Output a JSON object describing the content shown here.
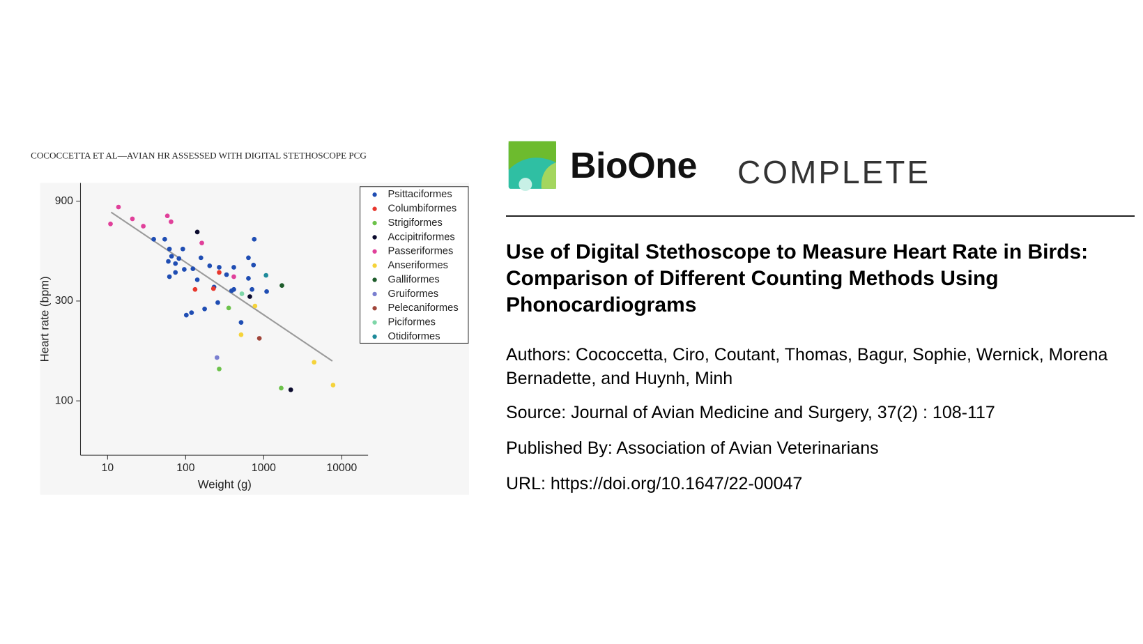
{
  "header": {
    "running_head": "COCOCCETTA ET AL—AVIAN HR ASSESSED WITH DIGITAL STETHOSCOPE PCG"
  },
  "chart_data": {
    "type": "scatter",
    "xlabel": "Weight (g)",
    "ylabel": "Heart rate (bpm)",
    "xscale": "log",
    "yscale": "log",
    "xlim": [
      4.5,
      21700
    ],
    "ylim": [
      55,
      1100
    ],
    "xticks": [
      10,
      100,
      1000,
      10000
    ],
    "yticks": [
      100,
      300,
      900
    ],
    "legend": "upper right",
    "fit_line": {
      "color": "#9a9a9a",
      "x": [
        11.1,
        7570
      ],
      "y": [
        797,
        155
      ]
    },
    "series": [
      {
        "name": "Psittaciformes",
        "color": "#1f4db3",
        "x": [
          39,
          54,
          62,
          60,
          66,
          74,
          62,
          92,
          82,
          74,
          96,
          102,
          119,
          157,
          203,
          141,
          175,
          231,
          258,
          269,
          334,
          414,
          414,
          513,
          637,
          637,
          708,
          756,
          740,
          1090,
          388,
          124
        ],
        "y": [
          592,
          592,
          532,
          464,
          491,
          453,
          392,
          532,
          479,
          411,
          425,
          257,
          264,
          483,
          442,
          379,
          275,
          350,
          295,
          435,
          401,
          435,
          341,
          237,
          483,
          385,
          341,
          592,
          446,
          333,
          336,
          428
        ]
      },
      {
        "name": "Columbiformes",
        "color": "#e8372d",
        "x": [
          132,
          227,
          269
        ],
        "y": [
          341,
          344,
          411
        ]
      },
      {
        "name": "Strigiformes",
        "color": "#6cc24a",
        "x": [
          269,
          356,
          1675
        ],
        "y": [
          142,
          278,
          115
        ]
      },
      {
        "name": "Accipitriformes",
        "color": "#0b0b2e",
        "x": [
          141,
          664,
          2220
        ],
        "y": [
          641,
          315,
          113
        ]
      },
      {
        "name": "Passeriformes",
        "color": "#e0409a",
        "x": [
          10.9,
          13.8,
          20.8,
          28.7,
          58.3,
          65,
          161,
          414
        ],
        "y": [
          701,
          844,
          741,
          684,
          766,
          718,
          568,
          392
        ]
      },
      {
        "name": "Anseriformes",
        "color": "#f5d33a",
        "x": [
          513,
          773,
          4420,
          7730
        ],
        "y": [
          207,
          284,
          153,
          119
        ]
      },
      {
        "name": "Galliformes",
        "color": "#1e5c2b",
        "x": [
          1710
        ],
        "y": [
          356
        ]
      },
      {
        "name": "Gruiformes",
        "color": "#7a7fd0",
        "x": [
          252
        ],
        "y": [
          161
        ]
      },
      {
        "name": "Pelecaniformes",
        "color": "#a0453a",
        "x": [
          879
        ],
        "y": [
          199
        ]
      },
      {
        "name": "Piciformes",
        "color": "#7ed6a8",
        "x": [
          525
        ],
        "y": [
          325
        ]
      },
      {
        "name": "Otidiformes",
        "color": "#1e8a9a",
        "x": [
          1070
        ],
        "y": [
          398
        ]
      }
    ]
  },
  "brand": {
    "name": "BioOne",
    "product": "COMPLETE"
  },
  "article": {
    "title": "Use of Digital Stethoscope to Measure Heart Rate in Birds: Comparison of Different Counting Methods Using Phonocardiograms",
    "authors": "Authors: Cococcetta, Ciro, Coutant, Thomas, Bagur, Sophie, Wernick, Morena Bernadette, and Huynh, Minh",
    "source": "Source: Journal of Avian Medicine and Surgery, 37(2) : 108-117",
    "publisher": "Published By: Association of Avian Veterinarians",
    "url": "URL: https://doi.org/10.1647/22-00047"
  }
}
